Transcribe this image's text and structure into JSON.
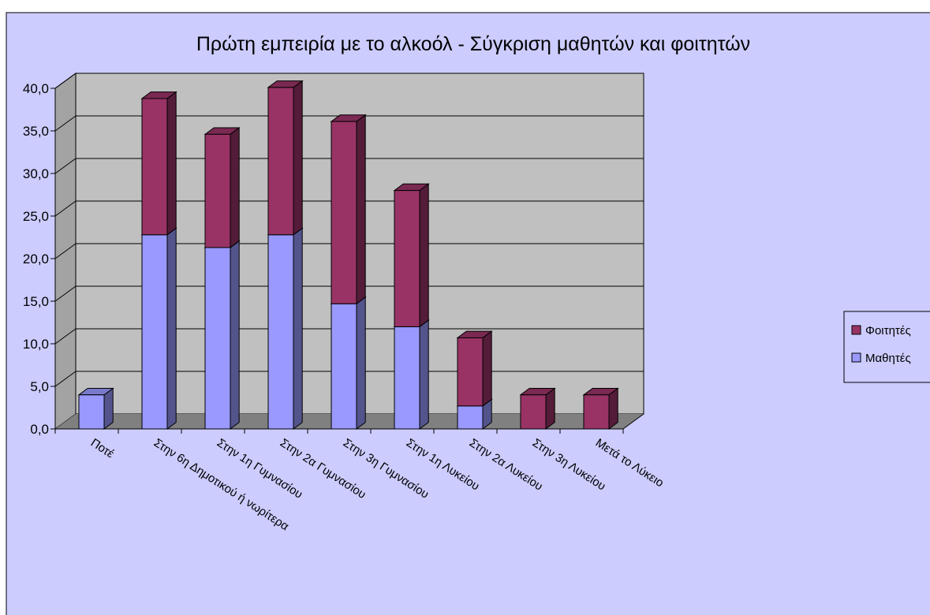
{
  "chart_data": {
    "type": "bar",
    "stacked": true,
    "three_d": true,
    "title": "Πρώτη εμπειρία με το αλκοόλ - Σύγκριση μαθητών και φοιτητών",
    "categories": [
      "Ποτέ",
      "Στην 6η Δημοτικού ή νωρίτερα",
      "Στην 1η Γυμνασίου",
      "Στην 2α Γυμνασίου",
      "Στην 3η Γυμνασίου",
      "Στην 1η Λυκείου",
      "Στην 2α Λυκείου",
      "Στην 3η Λυκείου",
      "Μετά το Λύκειο"
    ],
    "series": [
      {
        "name": "Μαθητές",
        "color": "#9999ff",
        "values": [
          4.0,
          22.8,
          21.3,
          22.8,
          14.7,
          12.0,
          2.7,
          0.0,
          0.0
        ]
      },
      {
        "name": "Φοιτητές",
        "color": "#993366",
        "values": [
          0.0,
          16.0,
          13.3,
          17.3,
          21.4,
          16.0,
          8.0,
          4.0,
          4.0
        ]
      }
    ],
    "ylim": [
      0,
      40
    ],
    "yticks": [
      "0,0",
      "5,0",
      "10,0",
      "15,0",
      "20,0",
      "25,0",
      "30,0",
      "35,0",
      "40,0"
    ],
    "grid": true,
    "legend": "right",
    "colors": {
      "background": "#ccccff",
      "wall": "#c0c0c0",
      "floor": "#808080"
    }
  }
}
